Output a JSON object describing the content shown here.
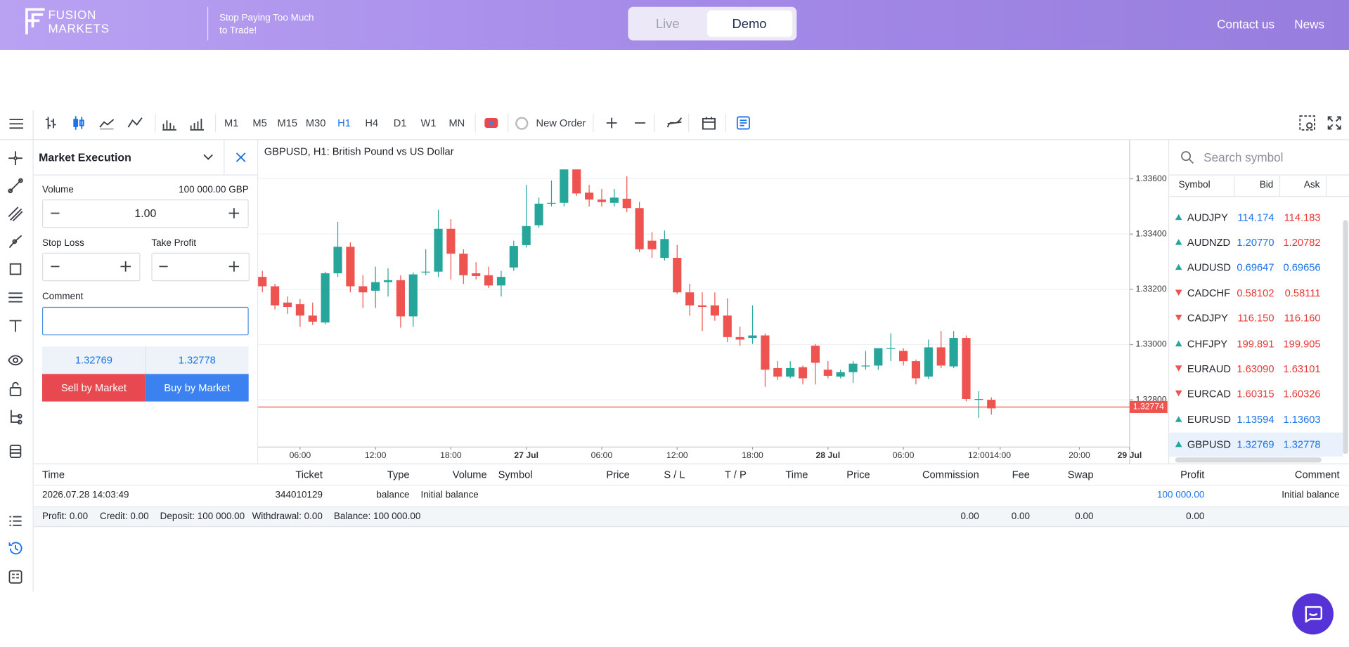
{
  "header": {
    "logo_line1": "FUSION",
    "logo_line2": "MARKETS",
    "tagline_line1": "Stop Paying Too Much",
    "tagline_line2": "to Trade!",
    "modes": [
      "Live",
      "Demo"
    ],
    "active_mode": "Demo",
    "links": [
      "Contact us",
      "News"
    ]
  },
  "toolbar": {
    "timeframes": [
      "M1",
      "M5",
      "M15",
      "M30",
      "H1",
      "H4",
      "D1",
      "W1",
      "MN"
    ],
    "active": "H1",
    "new_order": "New Order"
  },
  "order_panel": {
    "title": "Market Execution",
    "volume_label": "Volume",
    "volume_info": "100 000.00 GBP",
    "volume": "1.00",
    "stop_loss_label": "Stop Loss",
    "take_profit_label": "Take Profit",
    "comment_label": "Comment",
    "bid": "1.32769",
    "ask": "1.32778",
    "sell": "Sell by Market",
    "buy": "Buy by Market"
  },
  "chart": {
    "type": "candlestick",
    "title": "GBPUSD, H1: British Pound vs US Dollar",
    "ylim": [
      1.32629,
      1.3374
    ],
    "yticks": [
      {
        "value": 1.336,
        "label": "1.33600"
      },
      {
        "value": 1.334,
        "label": "1.33400"
      },
      {
        "value": 1.332,
        "label": "1.33200"
      },
      {
        "value": 1.33,
        "label": "1.33000"
      },
      {
        "value": 1.328,
        "label": "1.32800"
      }
    ],
    "xlim": [
      -0.34,
      69
    ],
    "xticks": [
      {
        "value": 3,
        "label": "06:00"
      },
      {
        "value": 9,
        "label": "12:00"
      },
      {
        "value": 15,
        "label": "18:00"
      },
      {
        "value": 21,
        "label": "27 Jul",
        "bold": true
      },
      {
        "value": 27,
        "label": "06:00"
      },
      {
        "value": 33,
        "label": "12:00"
      },
      {
        "value": 39,
        "label": "18:00"
      },
      {
        "value": 45,
        "label": "28 Jul",
        "bold": true
      },
      {
        "value": 51,
        "label": "06:00"
      },
      {
        "value": 57,
        "label": "12:00"
      },
      {
        "value": 58.7,
        "label": "14:00"
      },
      {
        "value": 65,
        "label": "20:00"
      },
      {
        "value": 69,
        "label": "29 Jul",
        "bold": true
      }
    ],
    "grid": true,
    "up_color": "#26a69a",
    "down_color": "#ef5350",
    "current_price": 1.32774,
    "candles": [
      {
        "open": 1.33245,
        "high": 1.33267,
        "low": 1.33189,
        "close": 1.33211
      },
      {
        "open": 1.33211,
        "high": 1.3322,
        "low": 1.33127,
        "close": 1.33142
      },
      {
        "open": 1.33152,
        "high": 1.33174,
        "low": 1.33111,
        "close": 1.33136
      },
      {
        "open": 1.33146,
        "high": 1.33164,
        "low": 1.33065,
        "close": 1.33105
      },
      {
        "open": 1.33105,
        "high": 1.33152,
        "low": 1.33071,
        "close": 1.33083
      },
      {
        "open": 1.3308,
        "high": 1.33264,
        "low": 1.33074,
        "close": 1.33258
      },
      {
        "open": 1.33258,
        "high": 1.33444,
        "low": 1.33245,
        "close": 1.33354
      },
      {
        "open": 1.33354,
        "high": 1.3337,
        "low": 1.33189,
        "close": 1.33211
      },
      {
        "open": 1.33211,
        "high": 1.33251,
        "low": 1.33133,
        "close": 1.33189
      },
      {
        "open": 1.33195,
        "high": 1.33282,
        "low": 1.33133,
        "close": 1.33226
      },
      {
        "open": 1.33226,
        "high": 1.33276,
        "low": 1.33174,
        "close": 1.33233
      },
      {
        "open": 1.33233,
        "high": 1.33251,
        "low": 1.33061,
        "close": 1.33102
      },
      {
        "open": 1.33102,
        "high": 1.33261,
        "low": 1.33065,
        "close": 1.33254
      },
      {
        "open": 1.33261,
        "high": 1.33345,
        "low": 1.33251,
        "close": 1.33264
      },
      {
        "open": 1.33264,
        "high": 1.33488,
        "low": 1.33245,
        "close": 1.33419
      },
      {
        "open": 1.33419,
        "high": 1.33454,
        "low": 1.33236,
        "close": 1.33329
      },
      {
        "open": 1.33329,
        "high": 1.33345,
        "low": 1.3322,
        "close": 1.33251
      },
      {
        "open": 1.33258,
        "high": 1.33298,
        "low": 1.33236,
        "close": 1.33248
      },
      {
        "open": 1.33251,
        "high": 1.33282,
        "low": 1.33205,
        "close": 1.33214
      },
      {
        "open": 1.33214,
        "high": 1.33267,
        "low": 1.33174,
        "close": 1.33245
      },
      {
        "open": 1.33279,
        "high": 1.33376,
        "low": 1.33267,
        "close": 1.33357
      },
      {
        "open": 1.3336,
        "high": 1.33578,
        "low": 1.33351,
        "close": 1.33429
      },
      {
        "open": 1.33432,
        "high": 1.33532,
        "low": 1.33423,
        "close": 1.3351
      },
      {
        "open": 1.3351,
        "high": 1.33594,
        "low": 1.335,
        "close": 1.33513
      },
      {
        "open": 1.33513,
        "high": 1.33634,
        "low": 1.335,
        "close": 1.33634
      },
      {
        "open": 1.33634,
        "high": 1.33634,
        "low": 1.33538,
        "close": 1.33547
      },
      {
        "open": 1.3355,
        "high": 1.33578,
        "low": 1.335,
        "close": 1.33525
      },
      {
        "open": 1.33525,
        "high": 1.33563,
        "low": 1.335,
        "close": 1.33516
      },
      {
        "open": 1.33513,
        "high": 1.33563,
        "low": 1.335,
        "close": 1.33532
      },
      {
        "open": 1.33528,
        "high": 1.33609,
        "low": 1.33479,
        "close": 1.33494
      },
      {
        "open": 1.33494,
        "high": 1.33516,
        "low": 1.33335,
        "close": 1.33345
      },
      {
        "open": 1.33376,
        "high": 1.33407,
        "low": 1.33314,
        "close": 1.33345
      },
      {
        "open": 1.33314,
        "high": 1.33413,
        "low": 1.33304,
        "close": 1.33382
      },
      {
        "open": 1.33314,
        "high": 1.3336,
        "low": 1.33183,
        "close": 1.33189
      },
      {
        "open": 1.33189,
        "high": 1.3322,
        "low": 1.33105,
        "close": 1.33142
      },
      {
        "open": 1.33142,
        "high": 1.33189,
        "low": 1.33049,
        "close": 1.33136
      },
      {
        "open": 1.33142,
        "high": 1.33189,
        "low": 1.33086,
        "close": 1.33105
      },
      {
        "open": 1.33105,
        "high": 1.33167,
        "low": 1.33009,
        "close": 1.33027
      },
      {
        "open": 1.33027,
        "high": 1.33065,
        "low": 1.32996,
        "close": 1.33018
      },
      {
        "open": 1.33024,
        "high": 1.33142,
        "low": 1.33002,
        "close": 1.33033
      },
      {
        "open": 1.33033,
        "high": 1.3304,
        "low": 1.32847,
        "close": 1.32909
      },
      {
        "open": 1.32915,
        "high": 1.3294,
        "low": 1.32872,
        "close": 1.32884
      },
      {
        "open": 1.32884,
        "high": 1.3294,
        "low": 1.32878,
        "close": 1.32915
      },
      {
        "open": 1.32918,
        "high": 1.32924,
        "low": 1.32856,
        "close": 1.32878
      },
      {
        "open": 1.32996,
        "high": 1.33002,
        "low": 1.32856,
        "close": 1.32934
      },
      {
        "open": 1.32909,
        "high": 1.3294,
        "low": 1.32878,
        "close": 1.32887
      },
      {
        "open": 1.32884,
        "high": 1.32909,
        "low": 1.32878,
        "close": 1.329
      },
      {
        "open": 1.329,
        "high": 1.3294,
        "low": 1.32862,
        "close": 1.32931
      },
      {
        "open": 1.32924,
        "high": 1.32977,
        "low": 1.32909,
        "close": 1.32924
      },
      {
        "open": 1.32924,
        "high": 1.32987,
        "low": 1.32909,
        "close": 1.32987
      },
      {
        "open": 1.32987,
        "high": 1.3304,
        "low": 1.3294,
        "close": 1.32987
      },
      {
        "open": 1.32977,
        "high": 1.32987,
        "low": 1.32924,
        "close": 1.3294
      },
      {
        "open": 1.3294,
        "high": 1.32946,
        "low": 1.32856,
        "close": 1.32878
      },
      {
        "open": 1.32884,
        "high": 1.33018,
        "low": 1.32875,
        "close": 1.3299
      },
      {
        "open": 1.3299,
        "high": 1.33049,
        "low": 1.32915,
        "close": 1.32924
      },
      {
        "open": 1.32921,
        "high": 1.33049,
        "low": 1.32915,
        "close": 1.33024
      },
      {
        "open": 1.33024,
        "high": 1.33033,
        "low": 1.32794,
        "close": 1.32803
      },
      {
        "open": 1.32803,
        "high": 1.32831,
        "low": 1.32735,
        "close": 1.32803
      },
      {
        "open": 1.328,
        "high": 1.32809,
        "low": 1.32747,
        "close": 1.32769
      }
    ]
  },
  "watchlist": {
    "search_placeholder": "Search symbol",
    "columns": [
      "Symbol",
      "Bid",
      "Ask"
    ],
    "rows": [
      {
        "symbol": "AUDJPY",
        "bid": "114.174",
        "ask": "114.183",
        "trend": "up",
        "bid_trend": "up",
        "ask_trend": "down"
      },
      {
        "symbol": "AUDNZD",
        "bid": "1.20770",
        "ask": "1.20782",
        "trend": "up",
        "bid_trend": "up",
        "ask_trend": "down"
      },
      {
        "symbol": "AUDUSD",
        "bid": "0.69647",
        "ask": "0.69656",
        "trend": "up",
        "bid_trend": "up",
        "ask_trend": "up"
      },
      {
        "symbol": "CADCHF",
        "bid": "0.58102",
        "ask": "0.58111",
        "trend": "down",
        "bid_trend": "down",
        "ask_trend": "down"
      },
      {
        "symbol": "CADJPY",
        "bid": "116.150",
        "ask": "116.160",
        "trend": "down",
        "bid_trend": "down",
        "ask_trend": "down"
      },
      {
        "symbol": "CHFJPY",
        "bid": "199.891",
        "ask": "199.905",
        "trend": "up",
        "bid_trend": "down",
        "ask_trend": "down"
      },
      {
        "symbol": "EURAUD",
        "bid": "1.63090",
        "ask": "1.63101",
        "trend": "down",
        "bid_trend": "down",
        "ask_trend": "down"
      },
      {
        "symbol": "EURCAD",
        "bid": "1.60315",
        "ask": "1.60326",
        "trend": "down",
        "bid_trend": "down",
        "ask_trend": "down"
      },
      {
        "symbol": "EURUSD",
        "bid": "1.13594",
        "ask": "1.13603",
        "trend": "up",
        "bid_trend": "up",
        "ask_trend": "up"
      },
      {
        "symbol": "GBPUSD",
        "bid": "1.32769",
        "ask": "1.32778",
        "trend": "up",
        "bid_trend": "up",
        "ask_trend": "up",
        "selected": true
      }
    ]
  },
  "history": {
    "columns": [
      "Time",
      "Ticket",
      "Type",
      "Volume",
      "Symbol",
      "Price",
      "S / L",
      "T / P",
      "Time",
      "Price",
      "Commission",
      "Fee",
      "Swap",
      "Profit",
      "Comment"
    ],
    "rows": [
      [
        "2026.07.28 14:03:49",
        "344010129",
        "balance",
        "Initial balance",
        "100 000.00",
        "Initial balance"
      ]
    ],
    "summary": [
      "Profit: 0.00",
      "Credit: 0.00",
      "Deposit: 100 000.00",
      "Withdrawal: 0.00",
      "Balance: 100 000.00"
    ],
    "totals": [
      "0.00",
      "0.00",
      "0.00",
      "0.00"
    ]
  }
}
